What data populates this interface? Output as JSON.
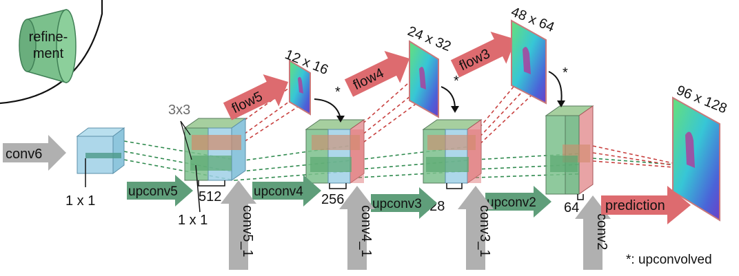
{
  "legend": {
    "refinement_line1": "refine-",
    "refinement_line2": "ment"
  },
  "inputs": {
    "conv6": "conv6",
    "conv5_1": "conv5_1",
    "conv4_1": "conv4_1",
    "conv3_1": "conv3_1",
    "conv2": "conv2"
  },
  "upconv": {
    "upconv5": "upconv5",
    "upconv4": "upconv4",
    "upconv3": "upconv3",
    "upconv2": "upconv2"
  },
  "flows": {
    "flow5": "flow5",
    "flow4": "flow4",
    "flow3": "flow3"
  },
  "prediction": "prediction",
  "sizes": {
    "flow5": "12 x 16",
    "flow4": "24 x 32",
    "flow3": "48 x 64",
    "prediction": "96 x 128"
  },
  "channels": {
    "c512": "512",
    "c256": "256",
    "c128": "128",
    "c64": "64"
  },
  "dims": {
    "one_by_one_a": "1 x 1",
    "one_by_one_b": "1 x 1",
    "three_by_three": "3x3"
  },
  "asterisk": "*",
  "footnote": "*: upconvolved",
  "colors": {
    "gray_arrow": "#b0b0b0",
    "green_arrow": "#5f9e7a",
    "red_arrow": "#dd6b6f",
    "blue_block": "#9fd0e6",
    "green_block": "#7bc08c",
    "red_block": "#e0787a",
    "green_dash": "#2f8a4e",
    "red_dash": "#c8403f"
  }
}
